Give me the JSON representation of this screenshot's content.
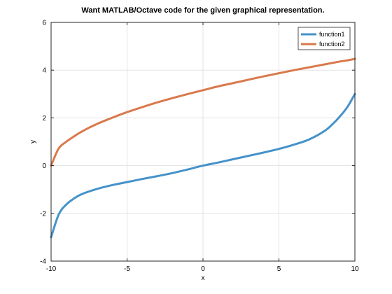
{
  "chart_data": {
    "type": "line",
    "title": "Want MATLAB/Octave code for the given graphical representation.",
    "xlabel": "x",
    "ylabel": "y",
    "xlim": [
      -10,
      10
    ],
    "ylim": [
      -4,
      6
    ],
    "xticks": [
      -10,
      -5,
      0,
      5,
      10
    ],
    "yticks": [
      -4,
      -2,
      0,
      2,
      4,
      6
    ],
    "grid": true,
    "legend_position": "top-right",
    "x": [
      -10,
      -9.5,
      -9,
      -8.5,
      -8,
      -7,
      -6,
      -5,
      -4,
      -3,
      -2,
      -1,
      0,
      1,
      2,
      3,
      4,
      5,
      6,
      7,
      8,
      8.5,
      9,
      9.5,
      10
    ],
    "series": [
      {
        "name": "function1",
        "color": "#4592c9",
        "values": [
          -3.0,
          -2.05,
          -1.63,
          -1.38,
          -1.2,
          -0.98,
          -0.82,
          -0.69,
          -0.56,
          -0.44,
          -0.31,
          -0.16,
          0.0,
          0.13,
          0.27,
          0.41,
          0.55,
          0.7,
          0.88,
          1.1,
          1.45,
          1.72,
          2.05,
          2.45,
          3.0
        ]
      },
      {
        "name": "function2",
        "color": "#d9794c",
        "values": [
          0.0,
          0.72,
          1.0,
          1.22,
          1.42,
          1.74,
          2.0,
          2.24,
          2.45,
          2.65,
          2.83,
          3.0,
          3.16,
          3.32,
          3.46,
          3.6,
          3.74,
          3.87,
          4.0,
          4.12,
          4.24,
          4.3,
          4.36,
          4.41,
          4.47
        ]
      }
    ]
  }
}
